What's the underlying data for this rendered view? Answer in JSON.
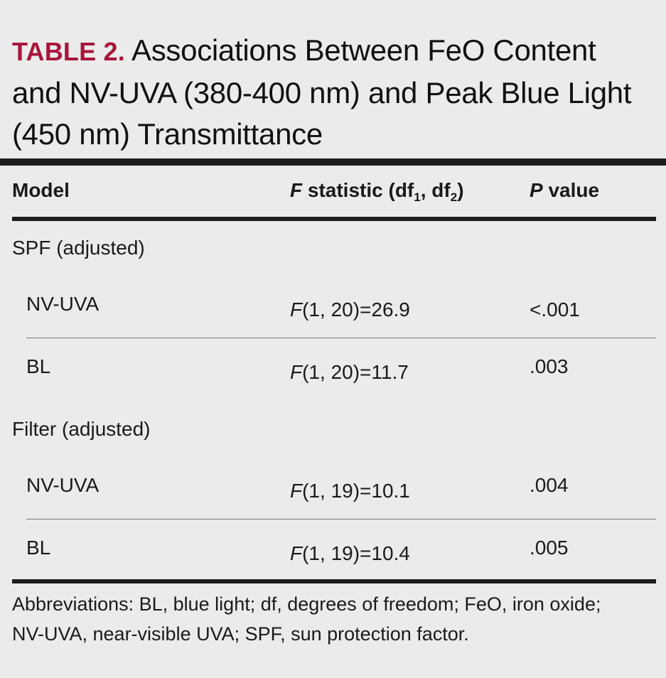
{
  "title": {
    "label": "TABLE 2.",
    "text": "Associations Between FeO Content and NV-UVA (380-400 nm) and Peak Blue Light (450 nm) Transmittance"
  },
  "header": {
    "model": "Model",
    "f_italic": "F",
    "f_text": " statistic (df",
    "f_sub1": "1",
    "f_comma": ", df",
    "f_sub2": "2",
    "f_close": ")",
    "p_italic": "P",
    "p_text": " value"
  },
  "groups": [
    {
      "name": "SPF (adjusted)",
      "rows": [
        {
          "model": "NV-UVA",
          "f_letter": "F",
          "f_value": "(1, 20)=26.9",
          "p": "<.001"
        },
        {
          "model": "BL",
          "f_letter": "F",
          "f_value": "(1, 20)=11.7",
          "p": ".003"
        }
      ]
    },
    {
      "name": "Filter (adjusted)",
      "rows": [
        {
          "model": "NV-UVA",
          "f_letter": "F",
          "f_value": "(1, 19)=10.1",
          "p": ".004"
        },
        {
          "model": "BL",
          "f_letter": "F",
          "f_value": "(1, 19)=10.4",
          "p": ".005"
        }
      ]
    }
  ],
  "footnote": "Abbreviations: BL, blue light; df, degrees of freedom; FeO, iron oxide; NV-UVA, near-visible UVA; SPF, sun protection factor.",
  "colors": {
    "label": "#a8163a",
    "background": "#ebebeb",
    "rule": "#1c1c1c"
  }
}
